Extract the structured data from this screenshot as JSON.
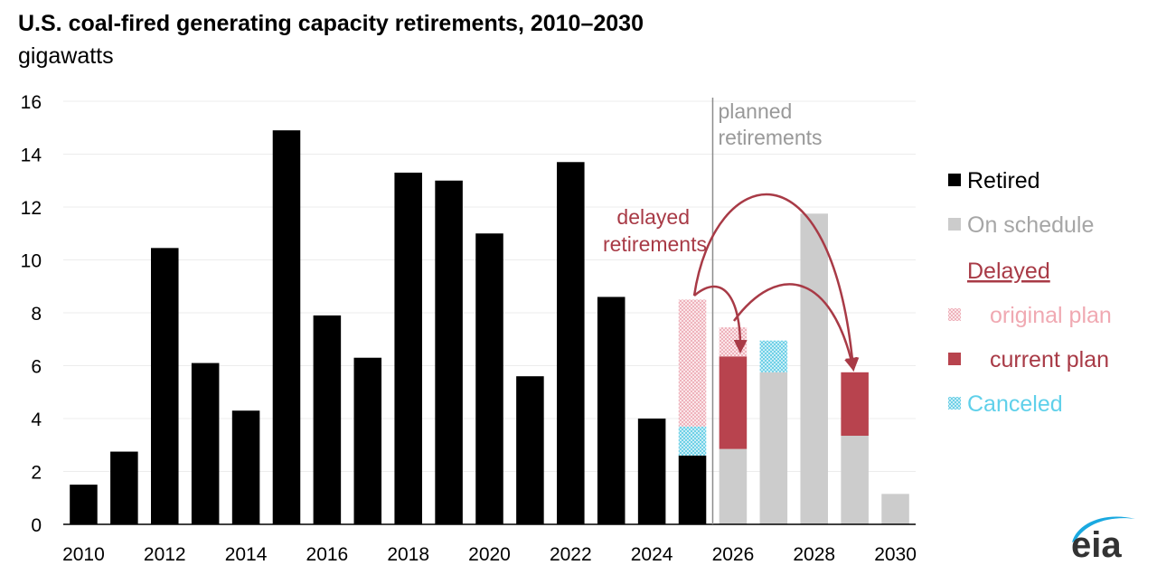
{
  "chart_data": {
    "type": "bar",
    "title": "U.S. coal-fired generating capacity retirements, 2010–2030",
    "subtitle": "gigawatts",
    "xlabel": "",
    "ylabel": "",
    "ylim": [
      0,
      16
    ],
    "yticks": [
      0,
      2,
      4,
      6,
      8,
      10,
      12,
      14,
      16
    ],
    "x_tick_labels": [
      "2010",
      "2012",
      "2014",
      "2016",
      "2018",
      "2020",
      "2022",
      "2024",
      "2026",
      "2028",
      "2030"
    ],
    "categories": [
      2010,
      2011,
      2012,
      2013,
      2014,
      2015,
      2016,
      2017,
      2018,
      2019,
      2020,
      2021,
      2022,
      2023,
      2024,
      2025,
      2026,
      2027,
      2028,
      2029,
      2030
    ],
    "series": [
      {
        "name": "Retired",
        "values": [
          1.5,
          2.75,
          10.45,
          6.1,
          4.3,
          14.9,
          7.9,
          6.3,
          13.3,
          13.0,
          11.0,
          5.6,
          13.7,
          8.6,
          4.0,
          2.6,
          0,
          0,
          0,
          0,
          0
        ]
      },
      {
        "name": "On schedule",
        "values": [
          0,
          0,
          0,
          0,
          0,
          0,
          0,
          0,
          0,
          0,
          0,
          0,
          0,
          0,
          0,
          0,
          2.85,
          5.75,
          11.75,
          3.35,
          1.15
        ]
      },
      {
        "name": "current plan",
        "values": [
          0,
          0,
          0,
          0,
          0,
          0,
          0,
          0,
          0,
          0,
          0,
          0,
          0,
          0,
          0,
          0,
          3.5,
          0,
          0,
          2.4,
          0
        ]
      },
      {
        "name": "Canceled",
        "values": [
          0,
          0,
          0,
          0,
          0,
          0,
          0,
          0,
          0,
          0,
          0,
          0,
          0,
          0,
          0,
          1.1,
          0,
          1.2,
          0,
          0,
          0
        ]
      },
      {
        "name": "original plan",
        "values": [
          0,
          0,
          0,
          0,
          0,
          0,
          0,
          0,
          0,
          0,
          0,
          0,
          0,
          0,
          0,
          4.8,
          1.1,
          0,
          0,
          0,
          0
        ]
      }
    ],
    "legend": {
      "placement": "right",
      "items": [
        {
          "label": "Retired",
          "key": "retired"
        },
        {
          "label": "On schedule",
          "key": "onschedule"
        },
        {
          "label": "Delayed",
          "key": "delayed_header"
        },
        {
          "label": "original plan",
          "key": "original"
        },
        {
          "label": "current plan",
          "key": "current"
        },
        {
          "label": "Canceled",
          "key": "canceled"
        }
      ]
    },
    "annotations": {
      "planned_line_1": "planned",
      "planned_line_2": "retirements",
      "planned_divider_x": 2025.5,
      "delayed_line_1": "delayed",
      "delayed_line_2": "retirements"
    },
    "arrows": [
      {
        "from_year": 2025,
        "to_year": 2026
      },
      {
        "from_year": 2025,
        "to_year": 2029
      },
      {
        "from_year": 2026,
        "to_year": 2029
      }
    ],
    "colors": {
      "retired": "#000000",
      "onschedule": "#cccccc",
      "current": "#b8434e",
      "original": "#f2c4ca",
      "canceled": "#7fd6ea",
      "annotation": "#a83a46",
      "planned_text": "#999999",
      "onschedule_text": "#a6a6a6",
      "original_text": "#f0a9b2",
      "canceled_text": "#5fd0ea",
      "divider": "#8c8c8c"
    }
  },
  "logo": {
    "text": "eia"
  }
}
